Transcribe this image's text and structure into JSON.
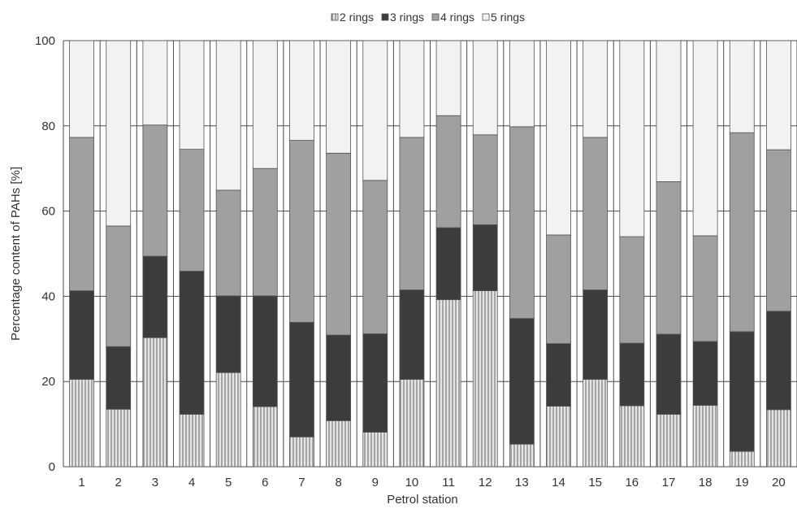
{
  "chart_data": {
    "type": "bar",
    "stacked": true,
    "xlabel": "Petrol station",
    "ylabel": "Percentage content of PAHs [%]",
    "ylim": [
      0,
      100
    ],
    "yticks": [
      "0",
      "20",
      "40",
      "60",
      "80",
      "100"
    ],
    "grid": true,
    "legend_position": "top",
    "categories": [
      "1",
      "2",
      "3",
      "4",
      "5",
      "6",
      "7",
      "8",
      "9",
      "10",
      "11",
      "12",
      "13",
      "14",
      "15",
      "16",
      "17",
      "18",
      "19",
      "20"
    ],
    "series": [
      {
        "name": "2 rings",
        "color": "#e6e6e6",
        "pattern": "vertical-stripes",
        "values": [
          20.5,
          13.5,
          30.3,
          12.3,
          22.1,
          14.1,
          7.0,
          10.8,
          8.1,
          20.5,
          39.2,
          41.3,
          5.3,
          14.2,
          20.5,
          14.3,
          12.3,
          14.4,
          3.6,
          13.4
        ]
      },
      {
        "name": "3 rings",
        "color": "#3c3c3c",
        "pattern": "solid",
        "values": [
          20.8,
          14.7,
          19.1,
          33.6,
          18.0,
          26.0,
          26.9,
          20.1,
          23.1,
          21.0,
          16.9,
          15.5,
          29.5,
          14.7,
          21.0,
          14.7,
          18.8,
          15.0,
          28.1,
          23.1
        ]
      },
      {
        "name": "4 rings",
        "color": "#a0a0a0",
        "pattern": "solid",
        "values": [
          36.0,
          28.3,
          30.8,
          28.6,
          24.8,
          29.9,
          42.7,
          42.7,
          36.0,
          35.8,
          26.3,
          21.1,
          45.0,
          25.5,
          35.8,
          25.0,
          35.8,
          24.8,
          46.7,
          37.9
        ]
      },
      {
        "name": "5 rings",
        "color": "#f2f2f2",
        "pattern": "solid",
        "values": [
          22.7,
          43.5,
          19.8,
          25.5,
          35.1,
          30.0,
          23.4,
          26.4,
          32.8,
          22.7,
          17.6,
          22.1,
          20.2,
          45.6,
          22.7,
          46.0,
          33.1,
          45.8,
          21.6,
          25.6
        ]
      }
    ]
  }
}
